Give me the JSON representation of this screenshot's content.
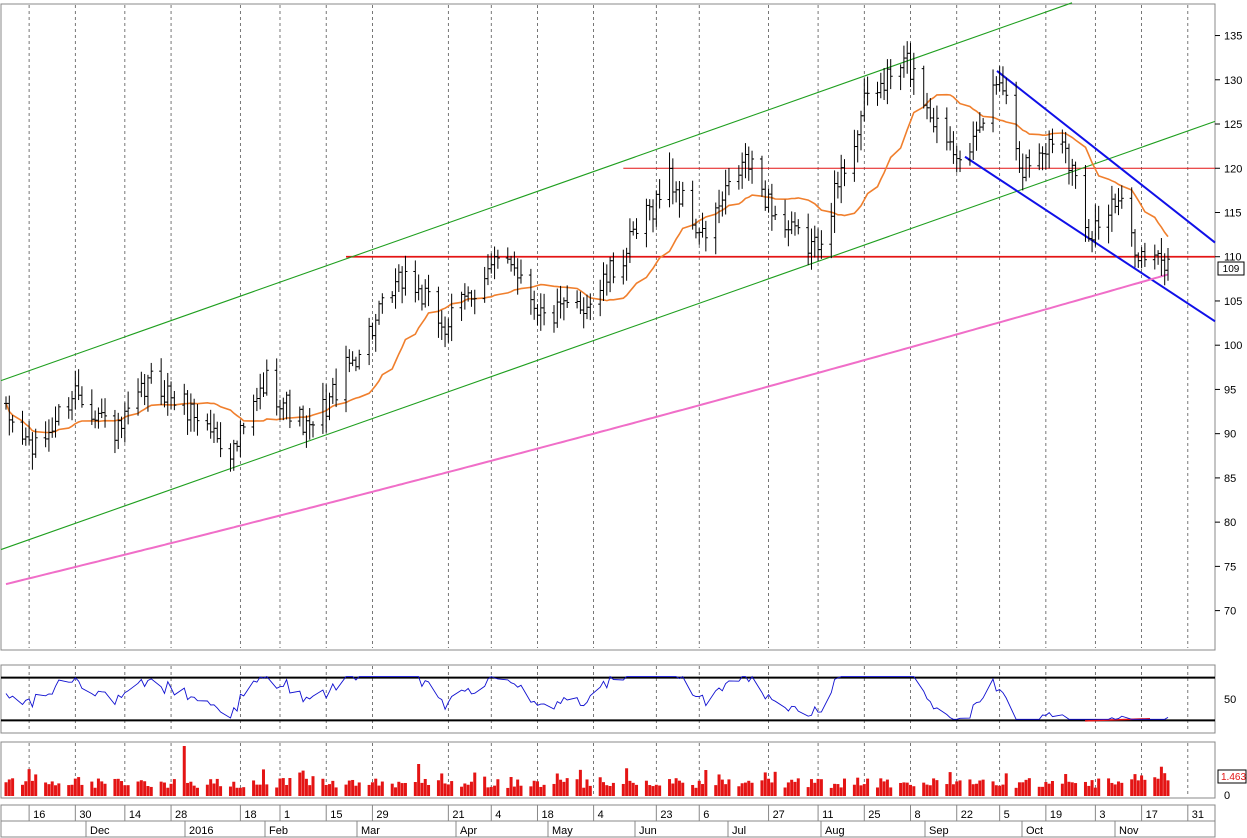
{
  "chart_data": [
    {
      "type": "candlestick",
      "name": "price",
      "ylim": [
        66,
        138
      ],
      "yticks": [
        70,
        75,
        80,
        85,
        90,
        95,
        100,
        105,
        110,
        115,
        120,
        125,
        130,
        135
      ],
      "last_value": "109",
      "overlays": [
        {
          "label": "short moving average",
          "color": "#f07f2d"
        },
        {
          "label": "long moving average",
          "color": "#f06ec8"
        }
      ],
      "levels": [
        {
          "value": 110,
          "color": "#e41414",
          "from": "2016-03-21",
          "to": "end"
        },
        {
          "value": 120,
          "color": "#e41414",
          "from": "2016-06-13",
          "to": "end"
        }
      ],
      "channels": [
        {
          "color": "#1f9f1f",
          "kind": "ascending"
        },
        {
          "color": "#1010e8",
          "kind": "descending"
        }
      ],
      "approx_close_path": [
        {
          "date": "2015-12-09",
          "value": 92
        },
        {
          "date": "2015-12-18",
          "value": 88
        },
        {
          "date": "2015-12-30",
          "value": 95
        },
        {
          "date": "2016-01-12",
          "value": 90
        },
        {
          "date": "2016-01-22",
          "value": 96
        },
        {
          "date": "2016-02-05",
          "value": 92
        },
        {
          "date": "2016-02-16",
          "value": 88
        },
        {
          "date": "2016-02-26",
          "value": 96
        },
        {
          "date": "2016-03-10",
          "value": 90
        },
        {
          "date": "2016-03-24",
          "value": 99
        },
        {
          "date": "2016-04-08",
          "value": 108
        },
        {
          "date": "2016-04-20",
          "value": 102
        },
        {
          "date": "2016-05-02",
          "value": 108
        },
        {
          "date": "2016-05-10",
          "value": 110
        },
        {
          "date": "2016-05-20",
          "value": 103
        },
        {
          "date": "2016-06-03",
          "value": 105
        },
        {
          "date": "2016-06-13",
          "value": 110
        },
        {
          "date": "2016-06-27",
          "value": 119
        },
        {
          "date": "2016-07-07",
          "value": 112
        },
        {
          "date": "2016-07-20",
          "value": 121
        },
        {
          "date": "2016-08-01",
          "value": 113
        },
        {
          "date": "2016-08-10",
          "value": 111
        },
        {
          "date": "2016-08-17",
          "value": 118
        },
        {
          "date": "2016-08-26",
          "value": 128
        },
        {
          "date": "2016-09-07",
          "value": 132
        },
        {
          "date": "2016-09-16",
          "value": 125
        },
        {
          "date": "2016-09-26",
          "value": 121
        },
        {
          "date": "2016-10-05",
          "value": 131
        },
        {
          "date": "2016-10-12",
          "value": 120
        },
        {
          "date": "2016-10-24",
          "value": 124
        },
        {
          "date": "2016-11-01",
          "value": 113
        },
        {
          "date": "2016-11-10",
          "value": 116
        },
        {
          "date": "2016-11-17",
          "value": 110
        },
        {
          "date": "2016-11-25",
          "value": 109
        }
      ]
    },
    {
      "type": "line",
      "name": "oscillator",
      "ylim": [
        20,
        80
      ],
      "yticks": [
        50
      ],
      "levels": [
        70,
        30
      ],
      "color": "#1010d0"
    },
    {
      "type": "bar",
      "name": "volume",
      "yticks": [
        0
      ],
      "last_value": "1.463",
      "color": "#e41414"
    }
  ],
  "x_axis": {
    "day_labels": [
      "16",
      "30",
      "14",
      "28",
      "18",
      "1",
      "15",
      "29",
      "21",
      "4",
      "18",
      "4",
      "23",
      "6",
      "27",
      "11",
      "25",
      "8",
      "22",
      "5",
      "19",
      "3",
      "17",
      "31"
    ],
    "month_labels": [
      "Dec",
      "2016",
      "Feb",
      "Mar",
      "Apr",
      "May",
      "Jun",
      "Jul",
      "Aug",
      "Sep",
      "Oct",
      "Nov"
    ]
  }
}
